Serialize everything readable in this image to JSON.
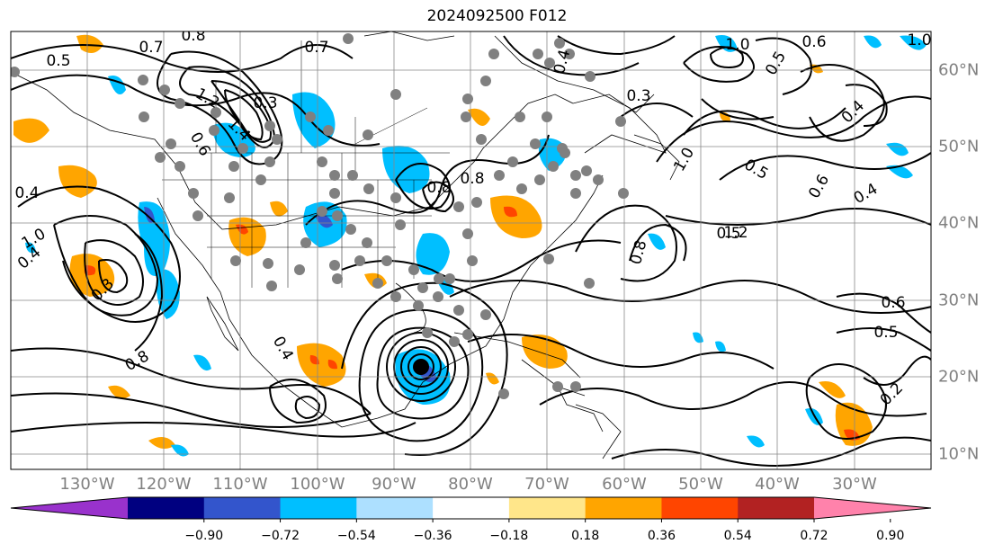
{
  "title": "2024092500 F012",
  "map": {
    "projection": "lat-lon",
    "lon_range": [
      -140,
      -20
    ],
    "lat_range": [
      8,
      65
    ],
    "gridlines": true,
    "lon_ticks": [
      "130°W",
      "120°W",
      "110°W",
      "100°W",
      "90°W",
      "80°W",
      "70°W",
      "60°W",
      "50°W",
      "40°W",
      "30°W"
    ],
    "lat_ticks": [
      "60°N",
      "50°N",
      "40°N",
      "30°N",
      "20°N",
      "10°N"
    ],
    "contour_labels": [
      "0.8",
      "0.7",
      "0.5",
      "1.2",
      "1.4",
      "0.3",
      "0.6",
      "0.4",
      "0.8",
      "0.7",
      "1.0",
      "0.5",
      "0.6",
      "0.4",
      "0.3",
      "0.4",
      "1.2",
      "0.8",
      "0.3",
      "0.8",
      "0.5",
      "0.6",
      "0.5",
      "0.2",
      "0.4",
      "1.0",
      "0.8",
      "1.0",
      "0.5",
      "0.6",
      "0.4",
      "1.0",
      "0.4"
    ],
    "features": [
      "continent-outlines",
      "state-borders",
      "contour-lines",
      "shaded-anomalies",
      "gray-station-dots",
      "hurricane-center"
    ]
  },
  "colorbar": {
    "ticks": [
      "−0.90",
      "−0.72",
      "−0.54",
      "−0.36",
      "−0.18",
      "0.18",
      "0.36",
      "0.54",
      "0.72",
      "0.90"
    ],
    "colors": [
      "#9932CC",
      "#000080",
      "#3355CC",
      "#00BFFF",
      "#ADE0FF",
      "#FFFFFF",
      "#FFE68A",
      "#FFA500",
      "#FF4500",
      "#B22222",
      "#FF82AB"
    ]
  }
}
